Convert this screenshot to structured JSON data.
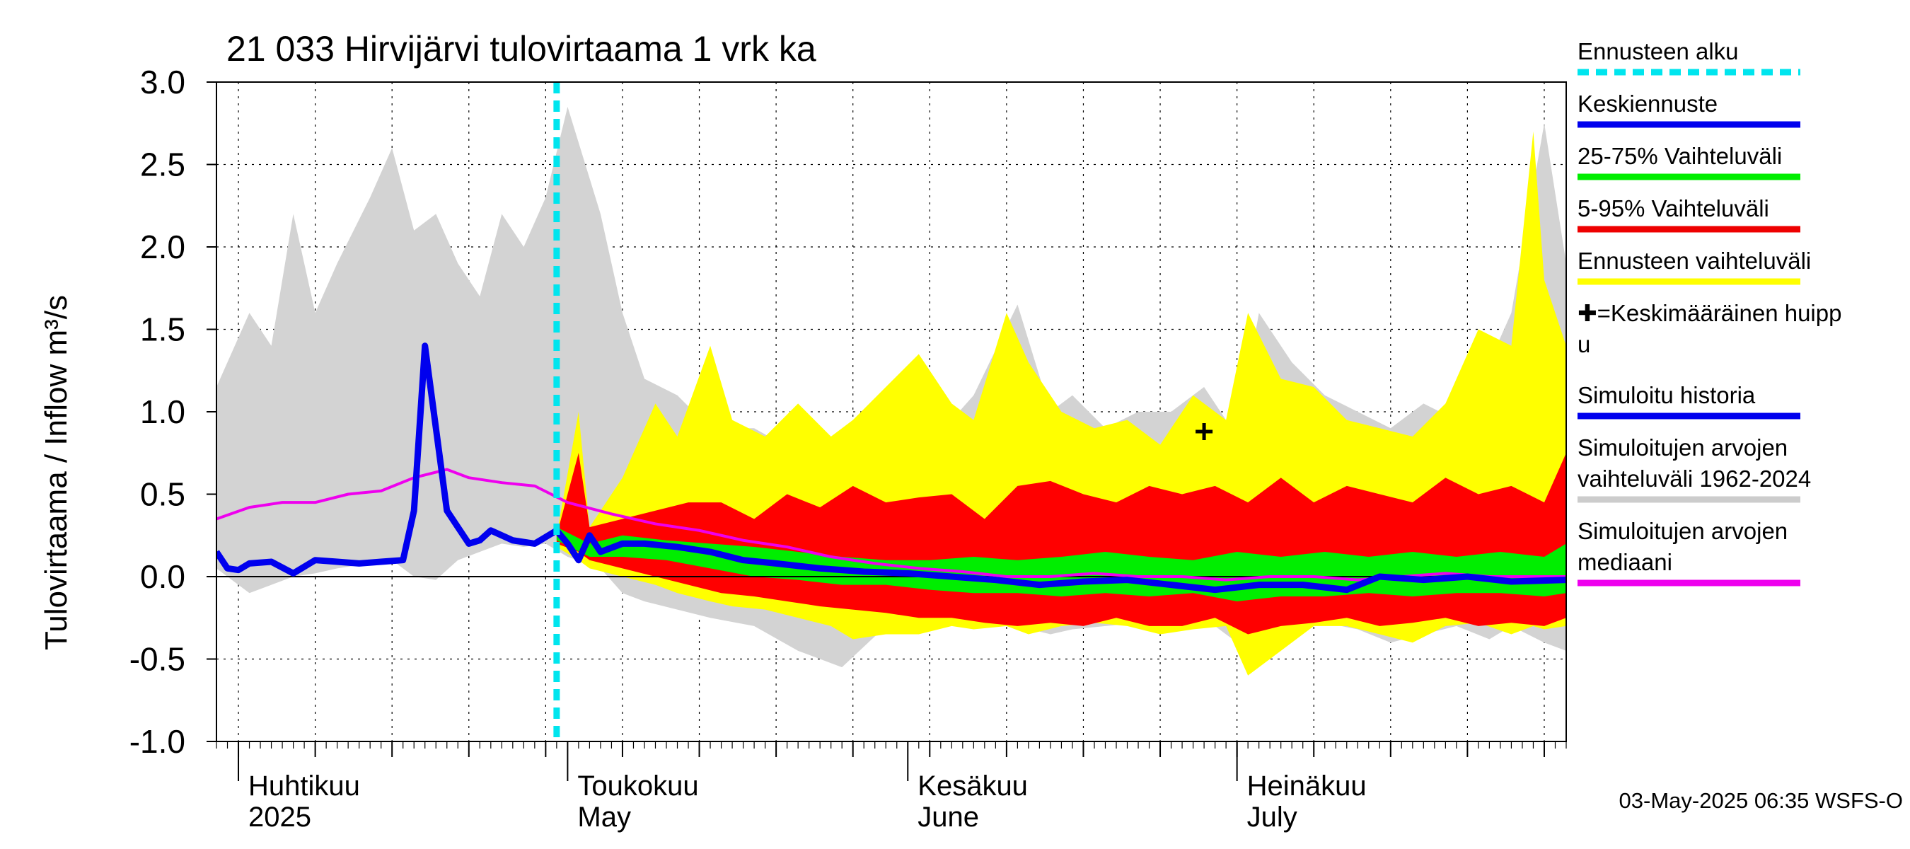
{
  "chart_data": {
    "type": "area",
    "title": "21 033 Hirvijärvi tulovirtaama 1 vrk ka",
    "ylabel": "Tulovirtaama / Inflow    m³/s",
    "ylim": [
      -1.0,
      3.0
    ],
    "yticks": [
      "3.0",
      "2.5",
      "2.0",
      "1.5",
      "1.0",
      "0.5",
      "0.0",
      "-0.5",
      "-1.0"
    ],
    "ytick_values": [
      3.0,
      2.5,
      2.0,
      1.5,
      1.0,
      0.5,
      0.0,
      -0.5,
      -1.0
    ],
    "x_range": [
      "2025-03-30",
      "2025-07-31"
    ],
    "month_labels": [
      {
        "fi": "Huhtikuu",
        "en": "2025",
        "date": "2025-04-01"
      },
      {
        "fi": "Toukokuu",
        "en": "May",
        "date": "2025-05-01"
      },
      {
        "fi": "Kesäkuu",
        "en": "June",
        "date": "2025-06-01"
      },
      {
        "fi": "Heinäkuu",
        "en": "July",
        "date": "2025-07-01"
      }
    ],
    "forecast_start": "2025-04-30",
    "mean_peak": {
      "date": "2025-06-28",
      "value": 0.88
    },
    "legend": [
      {
        "label": "Ennusteen alku",
        "color": "#00e5ee",
        "style": "dashed"
      },
      {
        "label": "Keskiennuste",
        "color": "#0000ee",
        "style": "line"
      },
      {
        "label": "25-75% Vaihteluväli",
        "color": "#00ee00",
        "style": "line"
      },
      {
        "label": "5-95% Vaihteluväli",
        "color": "#ee0000",
        "style": "line"
      },
      {
        "label": "Ennusteen vaihteluväli",
        "color": "#ffff00",
        "style": "line"
      },
      {
        "label": "✚=Keskimääräinen huipp\nu",
        "color": "#000000",
        "style": "none"
      },
      {
        "label": "Simuloitu historia",
        "color": "#0000ee",
        "style": "line"
      },
      {
        "label": "Simuloitujen arvojen\nvaihteluväli 1962-2024",
        "color": "#cccccc",
        "style": "line"
      },
      {
        "label": "Simuloitujen arvojen\nmediaani",
        "color": "#ee00ee",
        "style": "line"
      }
    ],
    "series": [
      {
        "name": "Simuloitujen arvojen vaihteluväli 1962-2024",
        "color": "#d3d3d3",
        "dates": [
          "2025-03-30",
          "2025-04-02",
          "2025-04-04",
          "2025-04-06",
          "2025-04-08",
          "2025-04-10",
          "2025-04-13",
          "2025-04-15",
          "2025-04-17",
          "2025-04-19",
          "2025-04-21",
          "2025-04-23",
          "2025-04-25",
          "2025-04-27",
          "2025-04-29",
          "2025-05-01",
          "2025-05-04",
          "2025-05-06",
          "2025-05-08",
          "2025-05-11",
          "2025-05-14",
          "2025-05-18",
          "2025-05-22",
          "2025-05-26",
          "2025-05-30",
          "2025-06-03",
          "2025-06-07",
          "2025-06-11",
          "2025-06-14",
          "2025-06-16",
          "2025-06-19",
          "2025-06-22",
          "2025-06-25",
          "2025-06-28",
          "2025-07-01",
          "2025-07-03",
          "2025-07-06",
          "2025-07-09",
          "2025-07-12",
          "2025-07-15",
          "2025-07-18",
          "2025-07-21",
          "2025-07-24",
          "2025-07-26",
          "2025-07-29",
          "2025-07-31"
        ],
        "low": [
          0.05,
          -0.1,
          -0.05,
          0.0,
          0.02,
          0.05,
          0.08,
          0.1,
          0.0,
          -0.02,
          0.1,
          0.15,
          0.2,
          0.18,
          0.2,
          0.12,
          0.05,
          -0.1,
          -0.15,
          -0.2,
          -0.25,
          -0.3,
          -0.45,
          -0.55,
          -0.3,
          -0.25,
          -0.28,
          -0.3,
          -0.35,
          -0.32,
          -0.3,
          -0.28,
          -0.3,
          -0.25,
          -0.4,
          -0.45,
          -0.3,
          -0.28,
          -0.32,
          -0.4,
          -0.35,
          -0.3,
          -0.38,
          -0.3,
          -0.4,
          -0.45
        ],
        "high": [
          1.15,
          1.6,
          1.4,
          2.2,
          1.6,
          1.9,
          2.3,
          2.6,
          2.1,
          2.2,
          1.9,
          1.7,
          2.2,
          2.0,
          2.3,
          2.85,
          2.2,
          1.6,
          1.2,
          1.1,
          0.9,
          0.9,
          0.75,
          0.6,
          0.7,
          0.8,
          1.1,
          1.65,
          1.0,
          1.1,
          0.9,
          1.0,
          1.0,
          1.15,
          0.85,
          1.6,
          1.3,
          1.1,
          1.0,
          0.9,
          1.05,
          0.95,
          1.3,
          1.6,
          2.75,
          1.9
        ]
      },
      {
        "name": "Ennusteen vaihteluväli",
        "color": "#ffff00",
        "dates": [
          "2025-04-30",
          "2025-05-02",
          "2025-05-03",
          "2025-05-06",
          "2025-05-09",
          "2025-05-11",
          "2025-05-14",
          "2025-05-16",
          "2025-05-19",
          "2025-05-22",
          "2025-05-25",
          "2025-05-27",
          "2025-05-30",
          "2025-06-02",
          "2025-06-05",
          "2025-06-07",
          "2025-06-10",
          "2025-06-12",
          "2025-06-15",
          "2025-06-18",
          "2025-06-21",
          "2025-06-24",
          "2025-06-27",
          "2025-06-30",
          "2025-07-02",
          "2025-07-05",
          "2025-07-08",
          "2025-07-11",
          "2025-07-14",
          "2025-07-17",
          "2025-07-20",
          "2025-07-23",
          "2025-07-26",
          "2025-07-28",
          "2025-07-29",
          "2025-07-31"
        ],
        "low": [
          0.18,
          0.1,
          0.05,
          0.0,
          -0.05,
          -0.1,
          -0.15,
          -0.18,
          -0.2,
          -0.25,
          -0.3,
          -0.38,
          -0.35,
          -0.35,
          -0.3,
          -0.32,
          -0.3,
          -0.35,
          -0.3,
          -0.28,
          -0.3,
          -0.35,
          -0.32,
          -0.3,
          -0.6,
          -0.45,
          -0.3,
          -0.3,
          -0.35,
          -0.4,
          -0.3,
          -0.28,
          -0.35,
          -0.3,
          -0.32,
          -0.3
        ],
        "high": [
          0.25,
          1.0,
          0.3,
          0.6,
          1.05,
          0.85,
          1.4,
          0.95,
          0.85,
          1.05,
          0.85,
          0.95,
          1.15,
          1.35,
          1.05,
          0.95,
          1.6,
          1.3,
          1.0,
          0.9,
          0.95,
          0.8,
          1.1,
          0.95,
          1.6,
          1.2,
          1.15,
          0.95,
          0.9,
          0.85,
          1.05,
          1.5,
          1.4,
          2.7,
          1.8,
          1.4
        ]
      },
      {
        "name": "5-95% Vaihteluväli",
        "color": "#ff0000",
        "dates": [
          "2025-04-30",
          "2025-05-02",
          "2025-05-03",
          "2025-05-06",
          "2025-05-09",
          "2025-05-12",
          "2025-05-15",
          "2025-05-18",
          "2025-05-21",
          "2025-05-24",
          "2025-05-27",
          "2025-05-30",
          "2025-06-02",
          "2025-06-05",
          "2025-06-08",
          "2025-06-11",
          "2025-06-14",
          "2025-06-17",
          "2025-06-20",
          "2025-06-23",
          "2025-06-26",
          "2025-06-29",
          "2025-07-02",
          "2025-07-05",
          "2025-07-08",
          "2025-07-11",
          "2025-07-14",
          "2025-07-17",
          "2025-07-20",
          "2025-07-23",
          "2025-07-26",
          "2025-07-29",
          "2025-07-31"
        ],
        "low": [
          0.2,
          0.15,
          0.1,
          0.05,
          0.0,
          -0.05,
          -0.1,
          -0.12,
          -0.15,
          -0.18,
          -0.2,
          -0.22,
          -0.25,
          -0.25,
          -0.28,
          -0.3,
          -0.28,
          -0.3,
          -0.25,
          -0.3,
          -0.3,
          -0.25,
          -0.35,
          -0.3,
          -0.28,
          -0.25,
          -0.3,
          -0.28,
          -0.25,
          -0.3,
          -0.28,
          -0.3,
          -0.25
        ],
        "high": [
          0.25,
          0.75,
          0.3,
          0.35,
          0.4,
          0.45,
          0.45,
          0.35,
          0.5,
          0.42,
          0.55,
          0.45,
          0.48,
          0.5,
          0.35,
          0.55,
          0.58,
          0.5,
          0.45,
          0.55,
          0.5,
          0.55,
          0.45,
          0.6,
          0.45,
          0.55,
          0.5,
          0.45,
          0.6,
          0.5,
          0.55,
          0.45,
          0.75
        ]
      },
      {
        "name": "25-75% Vaihteluväli",
        "color": "#00ee00",
        "dates": [
          "2025-04-30",
          "2025-05-03",
          "2025-05-06",
          "2025-05-10",
          "2025-05-14",
          "2025-05-18",
          "2025-05-22",
          "2025-05-26",
          "2025-05-30",
          "2025-06-03",
          "2025-06-07",
          "2025-06-11",
          "2025-06-15",
          "2025-06-19",
          "2025-06-23",
          "2025-06-27",
          "2025-07-01",
          "2025-07-05",
          "2025-07-09",
          "2025-07-13",
          "2025-07-17",
          "2025-07-21",
          "2025-07-25",
          "2025-07-29",
          "2025-07-31"
        ],
        "low": [
          0.22,
          0.12,
          0.12,
          0.1,
          0.05,
          0.0,
          -0.02,
          -0.05,
          -0.05,
          -0.08,
          -0.1,
          -0.1,
          -0.12,
          -0.1,
          -0.12,
          -0.1,
          -0.15,
          -0.12,
          -0.12,
          -0.1,
          -0.12,
          -0.1,
          -0.1,
          -0.12,
          -0.1
        ],
        "high": [
          0.3,
          0.2,
          0.25,
          0.22,
          0.2,
          0.18,
          0.15,
          0.12,
          0.1,
          0.1,
          0.12,
          0.1,
          0.12,
          0.15,
          0.12,
          0.1,
          0.15,
          0.12,
          0.15,
          0.12,
          0.15,
          0.12,
          0.15,
          0.12,
          0.2
        ]
      },
      {
        "name": "Simuloitujen arvojen mediaani",
        "color": "#ee00ee",
        "dates": [
          "2025-03-30",
          "2025-04-02",
          "2025-04-05",
          "2025-04-08",
          "2025-04-11",
          "2025-04-14",
          "2025-04-17",
          "2025-04-20",
          "2025-04-22",
          "2025-04-25",
          "2025-04-28",
          "2025-05-01",
          "2025-05-05",
          "2025-05-09",
          "2025-05-13",
          "2025-05-17",
          "2025-05-21",
          "2025-05-25",
          "2025-05-29",
          "2025-06-02",
          "2025-06-06",
          "2025-06-10",
          "2025-06-14",
          "2025-06-18",
          "2025-06-22",
          "2025-06-26",
          "2025-06-30",
          "2025-07-04",
          "2025-07-08",
          "2025-07-12",
          "2025-07-16",
          "2025-07-20",
          "2025-07-24",
          "2025-07-28",
          "2025-07-31"
        ],
        "values": [
          0.35,
          0.42,
          0.45,
          0.45,
          0.5,
          0.52,
          0.6,
          0.65,
          0.6,
          0.57,
          0.55,
          0.45,
          0.38,
          0.32,
          0.28,
          0.22,
          0.18,
          0.12,
          0.08,
          0.05,
          0.03,
          0.0,
          0.0,
          0.02,
          0.0,
          0.0,
          -0.02,
          0.0,
          0.0,
          -0.02,
          0.0,
          0.02,
          0.0,
          0.0,
          0.0
        ]
      },
      {
        "name": "Simuloitu historia",
        "color": "#0000ee",
        "dates": [
          "2025-03-30",
          "2025-03-31",
          "2025-04-01",
          "2025-04-02",
          "2025-04-04",
          "2025-04-06",
          "2025-04-08",
          "2025-04-10",
          "2025-04-12",
          "2025-04-14",
          "2025-04-16",
          "2025-04-17",
          "2025-04-18",
          "2025-04-19",
          "2025-04-20",
          "2025-04-21",
          "2025-04-22",
          "2025-04-23",
          "2025-04-24",
          "2025-04-25",
          "2025-04-26",
          "2025-04-28",
          "2025-04-30"
        ],
        "values": [
          0.15,
          0.05,
          0.04,
          0.08,
          0.09,
          0.02,
          0.1,
          0.09,
          0.08,
          0.09,
          0.1,
          0.4,
          1.4,
          0.9,
          0.4,
          0.3,
          0.2,
          0.22,
          0.28,
          0.25,
          0.22,
          0.2,
          0.28
        ]
      },
      {
        "name": "Keskiennuste",
        "color": "#0000ee",
        "dates": [
          "2025-04-30",
          "2025-05-01",
          "2025-05-02",
          "2025-05-03",
          "2025-05-04",
          "2025-05-06",
          "2025-05-08",
          "2025-05-11",
          "2025-05-14",
          "2025-05-17",
          "2025-05-20",
          "2025-05-24",
          "2025-05-28",
          "2025-06-01",
          "2025-06-05",
          "2025-06-09",
          "2025-06-13",
          "2025-06-17",
          "2025-06-21",
          "2025-06-25",
          "2025-06-29",
          "2025-07-03",
          "2025-07-07",
          "2025-07-11",
          "2025-07-14",
          "2025-07-18",
          "2025-07-22",
          "2025-07-26",
          "2025-07-31"
        ],
        "values": [
          0.28,
          0.2,
          0.1,
          0.25,
          0.15,
          0.2,
          0.2,
          0.18,
          0.15,
          0.1,
          0.08,
          0.05,
          0.03,
          0.02,
          0.0,
          -0.02,
          -0.05,
          -0.03,
          -0.02,
          -0.05,
          -0.08,
          -0.05,
          -0.05,
          -0.08,
          0.0,
          -0.02,
          0.0,
          -0.03,
          -0.02
        ]
      }
    ]
  },
  "footer": {
    "stamp": "03-May-2025 06:35 WSFS-O"
  }
}
